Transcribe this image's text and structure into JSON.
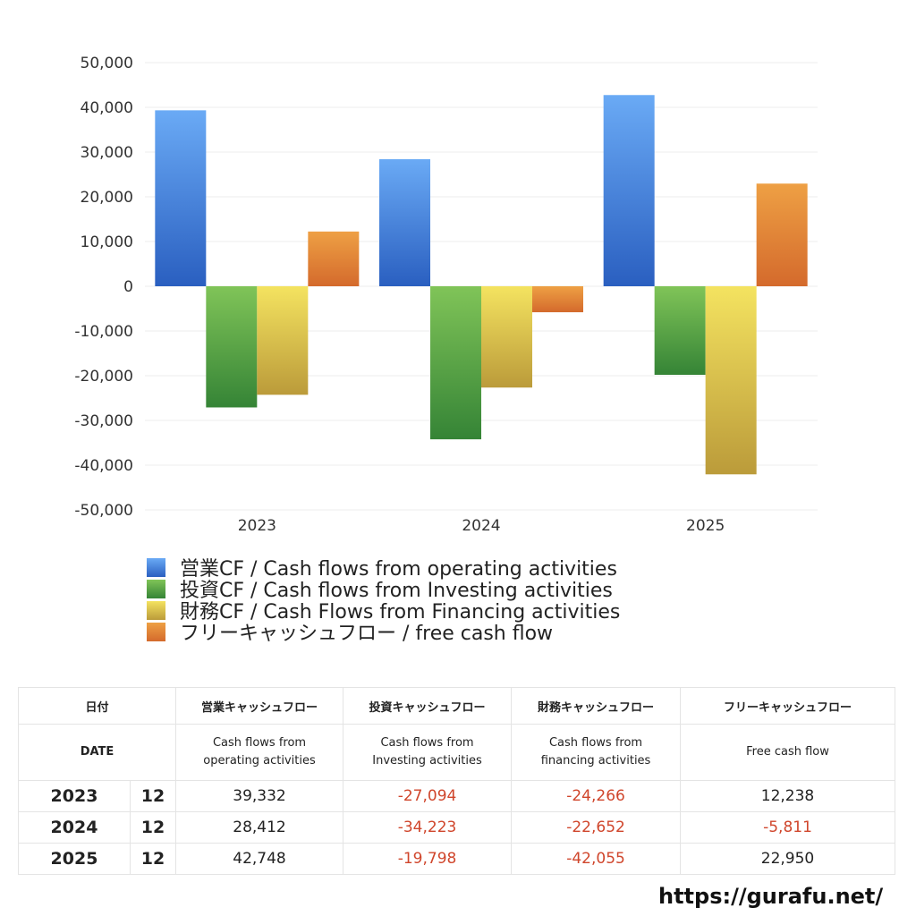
{
  "chart_data": {
    "type": "bar",
    "categories": [
      "2023",
      "2024",
      "2025"
    ],
    "series": [
      {
        "name": "営業CF / Cash flows from operating activities",
        "values": [
          39332,
          28412,
          42748
        ],
        "color_top": "#6aaaf5",
        "color_bottom": "#2a5fc0"
      },
      {
        "name": "投資CF / Cash flows from Investing activities",
        "values": [
          -27094,
          -34223,
          -19798
        ],
        "color_top": "#80c458",
        "color_bottom": "#358436"
      },
      {
        "name": "財務CF / Cash Flows from Financing activities",
        "values": [
          -24266,
          -22652,
          -42055
        ],
        "color_top": "#f4e360",
        "color_bottom": "#bb9b3a"
      },
      {
        "name": "フリーキャッシュフロー / free cash flow",
        "values": [
          12238,
          -5811,
          22950
        ],
        "color_top": "#eea044",
        "color_bottom": "#d46a2c"
      }
    ],
    "y_ticks": [
      "50,000",
      "40,000",
      "30,000",
      "20,000",
      "10,000",
      "0",
      "-10,000",
      "-20,000",
      "-30,000",
      "-40,000",
      "-50,000"
    ],
    "ylim": [
      -50000,
      50000
    ],
    "grid": true,
    "legend_position": "bottom"
  },
  "table": {
    "header_jp": {
      "date": "日付",
      "operating": "営業キャッシュフロー",
      "investing": "投資キャッシュフロー",
      "financing": "財務キャッシュフロー",
      "free": "フリーキャッシュフロー"
    },
    "header_en": {
      "date": "DATE",
      "operating_1": "Cash flows from",
      "operating_2": "operating activities",
      "investing_1": "Cash flows from",
      "investing_2": "Investing activities",
      "financing_1": "Cash flows from",
      "financing_2": "financing activities",
      "free": "Free cash flow"
    },
    "rows": [
      {
        "year": "2023",
        "month": "12",
        "operating": "39,332",
        "investing": "-27,094",
        "financing": "-24,266",
        "free": "12,238"
      },
      {
        "year": "2024",
        "month": "12",
        "operating": "28,412",
        "investing": "-34,223",
        "financing": "-22,652",
        "free": "-5,811"
      },
      {
        "year": "2025",
        "month": "12",
        "operating": "42,748",
        "investing": "-19,798",
        "financing": "-42,055",
        "free": "22,950"
      }
    ]
  },
  "site_url": "https://gurafu.net/"
}
